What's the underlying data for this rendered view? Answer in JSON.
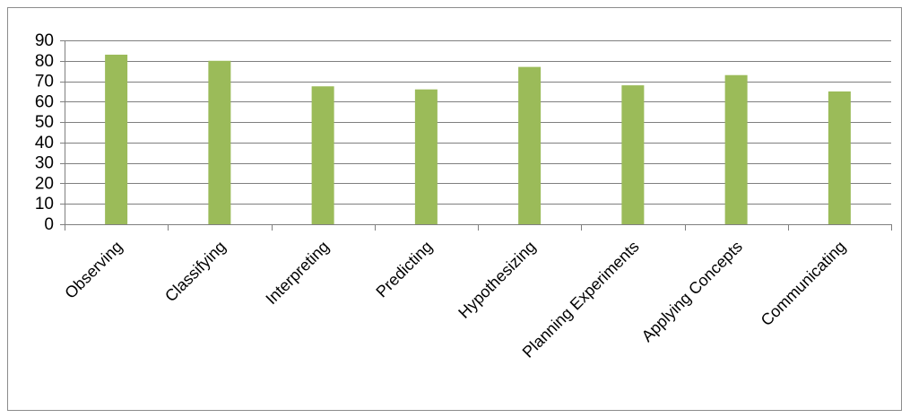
{
  "chart_data": {
    "type": "bar",
    "title": "",
    "xlabel": "",
    "ylabel": "",
    "categories": [
      "Observing",
      "Classifying",
      "Interpreting",
      "Predicting",
      "Hypothesizing",
      "Planning Experiments",
      "Applying Concepts",
      "Communicating"
    ],
    "values": [
      83,
      80,
      67.5,
      66,
      77,
      68,
      73,
      65
    ],
    "ylim": [
      0,
      90
    ],
    "yticks": [
      "0",
      "10",
      "20",
      "30",
      "40",
      "50",
      "60",
      "70",
      "80",
      "90"
    ],
    "grid": true,
    "legend": "none",
    "colors": {
      "bar": "#9bbb59",
      "gridline": "#7f7f7f",
      "text": "#000000"
    }
  }
}
